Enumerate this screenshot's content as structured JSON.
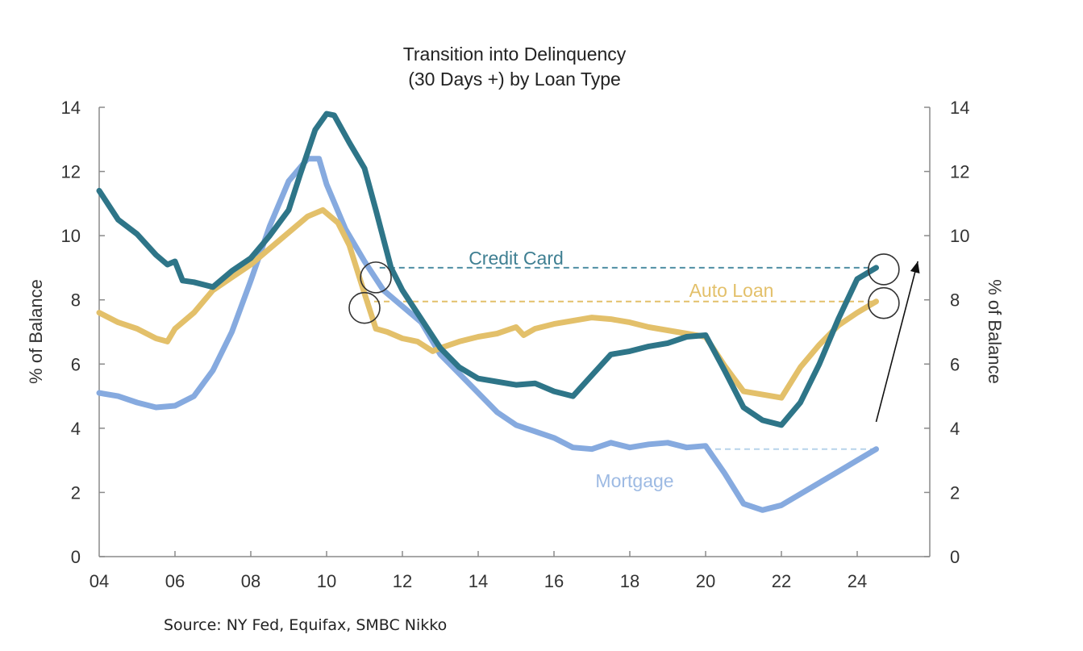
{
  "chart_data": {
    "type": "line",
    "title": [
      "Transition into Delinquency",
      "(30 Days +) by Loan Type"
    ],
    "xlabel": "",
    "ylabel_left": "% of Balance",
    "ylabel_right": "% of Balance",
    "xlim": [
      2004,
      2026
    ],
    "ylim": [
      0,
      14
    ],
    "x_ticks": [
      2004,
      2006,
      2008,
      2010,
      2012,
      2014,
      2016,
      2018,
      2020,
      2022,
      2024
    ],
    "x_tick_labels": [
      "04",
      "06",
      "08",
      "10",
      "12",
      "14",
      "16",
      "18",
      "20",
      "22",
      "24"
    ],
    "y_ticks": [
      0,
      2,
      4,
      6,
      8,
      10,
      12,
      14
    ],
    "y_tick_labels": [
      "0",
      "2",
      "4",
      "6",
      "8",
      "10",
      "12",
      "14"
    ],
    "grid": false,
    "series": [
      {
        "name": "Credit Card",
        "color": "#2e7588",
        "x": [
          2004.0,
          2004.5,
          2005.0,
          2005.5,
          2005.8,
          2006.0,
          2006.2,
          2006.5,
          2007.0,
          2007.5,
          2008.0,
          2008.5,
          2009.0,
          2009.3,
          2009.7,
          2010.0,
          2010.2,
          2010.6,
          2011.0,
          2011.3,
          2011.7,
          2012.0,
          2012.5,
          2013.0,
          2013.5,
          2014.0,
          2015.0,
          2015.5,
          2016.0,
          2016.5,
          2017.0,
          2017.5,
          2018.0,
          2018.5,
          2019.0,
          2019.5,
          2020.0,
          2020.5,
          2021.0,
          2021.5,
          2022.0,
          2022.5,
          2023.0,
          2023.5,
          2024.0,
          2024.5
        ],
        "y": [
          11.4,
          10.5,
          10.05,
          9.4,
          9.1,
          9.2,
          8.6,
          8.55,
          8.4,
          8.9,
          9.3,
          10.0,
          10.8,
          11.9,
          13.3,
          13.8,
          13.75,
          12.9,
          12.1,
          10.8,
          9.0,
          8.3,
          7.4,
          6.5,
          5.9,
          5.55,
          5.35,
          5.4,
          5.15,
          5.0,
          5.65,
          6.3,
          6.4,
          6.55,
          6.65,
          6.85,
          6.9,
          5.8,
          4.65,
          4.25,
          4.1,
          4.8,
          6.0,
          7.4,
          8.65,
          9.0
        ]
      },
      {
        "name": "Auto Loan",
        "color": "#e3c06a",
        "x": [
          2004.0,
          2004.5,
          2005.0,
          2005.5,
          2005.8,
          2006.0,
          2006.5,
          2007.0,
          2007.5,
          2008.0,
          2008.5,
          2009.0,
          2009.5,
          2009.9,
          2010.3,
          2010.6,
          2011.0,
          2011.3,
          2011.6,
          2012.0,
          2012.4,
          2012.8,
          2013.0,
          2013.5,
          2014.0,
          2014.5,
          2015.0,
          2015.2,
          2015.5,
          2016.0,
          2016.5,
          2017.0,
          2017.5,
          2018.0,
          2018.5,
          2019.0,
          2019.5,
          2020.0,
          2020.5,
          2021.0,
          2021.5,
          2022.0,
          2022.5,
          2023.0,
          2023.5,
          2024.0,
          2024.5
        ],
        "y": [
          7.6,
          7.3,
          7.1,
          6.8,
          6.7,
          7.1,
          7.6,
          8.3,
          8.7,
          9.1,
          9.6,
          10.1,
          10.6,
          10.8,
          10.4,
          9.7,
          8.2,
          7.1,
          7.0,
          6.8,
          6.7,
          6.4,
          6.5,
          6.7,
          6.85,
          6.95,
          7.15,
          6.9,
          7.1,
          7.25,
          7.35,
          7.45,
          7.4,
          7.3,
          7.15,
          7.05,
          6.95,
          6.85,
          5.95,
          5.15,
          5.05,
          4.95,
          5.9,
          6.6,
          7.2,
          7.6,
          7.95
        ]
      },
      {
        "name": "Mortgage",
        "color": "#86aadf",
        "x": [
          2004.0,
          2004.5,
          2005.0,
          2005.5,
          2006.0,
          2006.5,
          2007.0,
          2007.5,
          2008.0,
          2008.5,
          2009.0,
          2009.5,
          2009.8,
          2010.0,
          2010.5,
          2011.0,
          2011.5,
          2012.0,
          2012.5,
          2013.0,
          2013.5,
          2014.0,
          2014.5,
          2015.0,
          2015.5,
          2016.0,
          2016.5,
          2017.0,
          2017.5,
          2018.0,
          2018.5,
          2019.0,
          2019.5,
          2020.0,
          2020.5,
          2021.0,
          2021.5,
          2022.0,
          2022.5,
          2023.0,
          2023.5,
          2024.0,
          2024.5
        ],
        "y": [
          5.1,
          5.0,
          4.8,
          4.65,
          4.7,
          5.0,
          5.8,
          7.0,
          8.6,
          10.3,
          11.7,
          12.4,
          12.4,
          11.6,
          10.2,
          9.2,
          8.3,
          7.8,
          7.3,
          6.3,
          5.7,
          5.1,
          4.5,
          4.1,
          3.9,
          3.7,
          3.4,
          3.35,
          3.55,
          3.4,
          3.5,
          3.55,
          3.4,
          3.45,
          2.6,
          1.65,
          1.45,
          1.6,
          1.95,
          2.3,
          2.65,
          3.0,
          3.35
        ]
      }
    ],
    "annotations": [
      {
        "text": "Credit Card",
        "color": "#3f7f92",
        "reference_level": 9.0
      },
      {
        "text": "Auto Loan",
        "color": "#e3c06a",
        "reference_level": 7.95
      },
      {
        "text": "Mortgage",
        "color": "#9dbae3",
        "reference_level": 3.35
      }
    ],
    "trend_arrow": {
      "from": [
        2024.5,
        4.2
      ],
      "to": [
        2025.6,
        9.2
      ]
    },
    "highlight_circles": [
      {
        "x": 2011.3,
        "y": 8.7
      },
      {
        "x": 2011.0,
        "y": 7.75
      },
      {
        "x": 2024.7,
        "y": 8.95
      },
      {
        "x": 2024.7,
        "y": 7.9
      }
    ]
  },
  "source": "Source: NY Fed, Equifax, SMBC Nikko"
}
